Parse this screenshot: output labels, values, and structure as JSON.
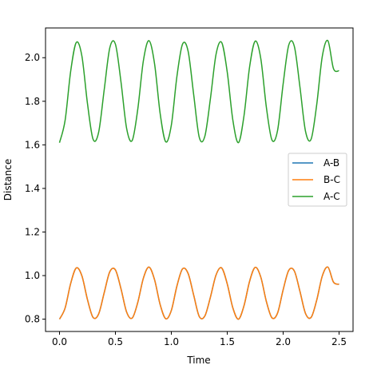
{
  "chart_data": {
    "type": "line",
    "title": "",
    "xlabel": "Time",
    "ylabel": "Distance",
    "xlim": [
      -0.125,
      2.625
    ],
    "ylim": [
      0.7435,
      2.1365
    ],
    "xticks": [
      0.0,
      0.5,
      1.0,
      1.5,
      2.0,
      2.5
    ],
    "xtick_labels": [
      "0.0",
      "0.5",
      "1.0",
      "1.5",
      "2.0",
      "2.5"
    ],
    "yticks": [
      0.8,
      1.0,
      1.2,
      1.4,
      1.6,
      1.8,
      2.0
    ],
    "ytick_labels": [
      "0.8",
      "1.0",
      "1.2",
      "1.4",
      "1.6",
      "1.8",
      "2.0"
    ],
    "grid": false,
    "legend_position": "center-right",
    "series": [
      {
        "name": "A-B",
        "color": "#1f77b4",
        "x": [
          0.0,
          0.05,
          0.1,
          0.15,
          0.2,
          0.25,
          0.3,
          0.35,
          0.4,
          0.45,
          0.5,
          0.55,
          0.6,
          0.65,
          0.7,
          0.75,
          0.8,
          0.85,
          0.9,
          0.95,
          1.0,
          1.05,
          1.1,
          1.15,
          1.2,
          1.25,
          1.3,
          1.35,
          1.4,
          1.45,
          1.5,
          1.55,
          1.6,
          1.65,
          1.7,
          1.75,
          1.8,
          1.85,
          1.9,
          1.95,
          2.0,
          2.05,
          2.1,
          2.15,
          2.2,
          2.25,
          2.3,
          2.35,
          2.4,
          2.45,
          2.5
        ],
        "y": [
          0.8,
          0.851,
          0.964,
          1.035,
          0.999,
          0.89,
          0.808,
          0.824,
          0.922,
          1.018,
          1.026,
          0.939,
          0.833,
          0.805,
          0.877,
          0.988,
          1.039,
          0.981,
          0.867,
          0.802,
          0.84,
          0.952,
          1.031,
          1.01,
          0.91,
          0.812,
          0.815,
          0.902,
          1.003,
          1.035,
          0.962,
          0.852,
          0.8,
          0.862,
          0.974,
          1.038,
          0.993,
          0.881,
          0.806,
          0.828,
          0.935,
          1.024,
          1.021,
          0.928,
          0.826,
          0.808,
          0.887,
          0.998,
          1.039,
          0.97,
          0.96
        ]
      },
      {
        "name": "B-C",
        "color": "#ff7f0e",
        "x": [
          0.0,
          0.05,
          0.1,
          0.15,
          0.2,
          0.25,
          0.3,
          0.35,
          0.4,
          0.45,
          0.5,
          0.55,
          0.6,
          0.65,
          0.7,
          0.75,
          0.8,
          0.85,
          0.9,
          0.95,
          1.0,
          1.05,
          1.1,
          1.15,
          1.2,
          1.25,
          1.3,
          1.35,
          1.4,
          1.45,
          1.5,
          1.55,
          1.6,
          1.65,
          1.7,
          1.75,
          1.8,
          1.85,
          1.9,
          1.95,
          2.0,
          2.05,
          2.1,
          2.15,
          2.2,
          2.25,
          2.3,
          2.35,
          2.4,
          2.45,
          2.5
        ],
        "y": [
          0.8,
          0.851,
          0.964,
          1.035,
          0.999,
          0.89,
          0.808,
          0.824,
          0.922,
          1.018,
          1.026,
          0.939,
          0.833,
          0.805,
          0.877,
          0.988,
          1.039,
          0.981,
          0.867,
          0.802,
          0.84,
          0.952,
          1.031,
          1.01,
          0.91,
          0.812,
          0.815,
          0.902,
          1.003,
          1.035,
          0.962,
          0.852,
          0.8,
          0.862,
          0.974,
          1.038,
          0.993,
          0.881,
          0.806,
          0.828,
          0.935,
          1.024,
          1.021,
          0.928,
          0.826,
          0.808,
          0.887,
          0.998,
          1.039,
          0.97,
          0.96
        ]
      },
      {
        "name": "A-C",
        "color": "#2ca02c",
        "x": [
          0.0,
          0.05,
          0.1,
          0.15,
          0.2,
          0.25,
          0.3,
          0.35,
          0.4,
          0.45,
          0.5,
          0.55,
          0.6,
          0.65,
          0.7,
          0.75,
          0.8,
          0.85,
          0.9,
          0.95,
          1.0,
          1.05,
          1.1,
          1.15,
          1.2,
          1.25,
          1.3,
          1.35,
          1.4,
          1.45,
          1.5,
          1.55,
          1.6,
          1.65,
          1.7,
          1.75,
          1.8,
          1.85,
          1.9,
          1.95,
          2.0,
          2.05,
          2.1,
          2.15,
          2.2,
          2.25,
          2.3,
          2.35,
          2.4,
          2.45,
          2.5
        ],
        "y": [
          1.61,
          1.712,
          1.938,
          2.07,
          2.008,
          1.79,
          1.626,
          1.658,
          1.854,
          2.046,
          2.062,
          1.888,
          1.676,
          1.62,
          1.764,
          1.986,
          2.078,
          1.972,
          1.744,
          1.614,
          1.69,
          1.914,
          2.062,
          2.03,
          1.83,
          1.634,
          1.64,
          1.814,
          2.016,
          2.07,
          1.934,
          1.714,
          1.61,
          1.734,
          1.958,
          2.076,
          1.996,
          1.772,
          1.622,
          1.666,
          1.88,
          2.058,
          2.052,
          1.866,
          1.662,
          1.626,
          1.784,
          2.006,
          2.078,
          1.95,
          1.94
        ]
      }
    ]
  }
}
